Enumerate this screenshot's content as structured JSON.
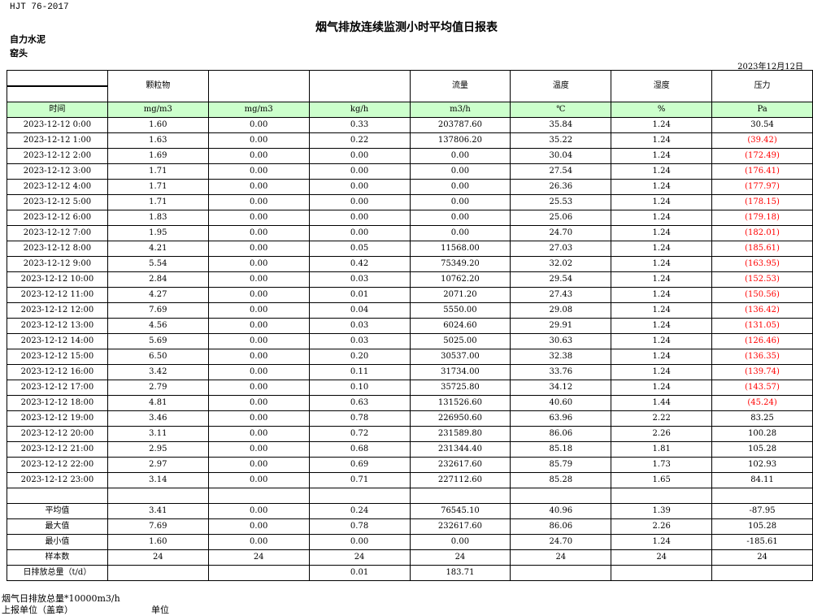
{
  "standard": "HJT  76-2017",
  "title": "烟气排放连续监测小时平均值日报表",
  "company": "自力水泥",
  "unit": "窑头",
  "date": "2023年12月12日",
  "headers": [
    "",
    "颗粒物",
    "",
    "",
    "流量",
    "温度",
    "湿度",
    "压力"
  ],
  "units": [
    "时间",
    "mg/m3",
    "mg/m3",
    "kg/h",
    "m3/h",
    "℃",
    "%",
    "Pa"
  ],
  "rows": [
    [
      "2023-12-12 0:00",
      "1.60",
      "0.00",
      "0.33",
      "203787.60",
      "35.84",
      "1.24",
      "30.54"
    ],
    [
      "2023-12-12 1:00",
      "1.63",
      "0.00",
      "0.22",
      "137806.20",
      "35.22",
      "1.24",
      "(39.42)"
    ],
    [
      "2023-12-12 2:00",
      "1.69",
      "0.00",
      "0.00",
      "0.00",
      "30.04",
      "1.24",
      "(172.49)"
    ],
    [
      "2023-12-12 3:00",
      "1.71",
      "0.00",
      "0.00",
      "0.00",
      "27.54",
      "1.24",
      "(176.41)"
    ],
    [
      "2023-12-12 4:00",
      "1.71",
      "0.00",
      "0.00",
      "0.00",
      "26.36",
      "1.24",
      "(177.97)"
    ],
    [
      "2023-12-12 5:00",
      "1.71",
      "0.00",
      "0.00",
      "0.00",
      "25.53",
      "1.24",
      "(178.15)"
    ],
    [
      "2023-12-12 6:00",
      "1.83",
      "0.00",
      "0.00",
      "0.00",
      "25.06",
      "1.24",
      "(179.18)"
    ],
    [
      "2023-12-12 7:00",
      "1.95",
      "0.00",
      "0.00",
      "0.00",
      "24.70",
      "1.24",
      "(182.01)"
    ],
    [
      "2023-12-12 8:00",
      "4.21",
      "0.00",
      "0.05",
      "11568.00",
      "27.03",
      "1.24",
      "(185.61)"
    ],
    [
      "2023-12-12 9:00",
      "5.54",
      "0.00",
      "0.42",
      "75349.20",
      "32.02",
      "1.24",
      "(163.95)"
    ],
    [
      "2023-12-12 10:00",
      "2.84",
      "0.00",
      "0.03",
      "10762.20",
      "29.54",
      "1.24",
      "(152.53)"
    ],
    [
      "2023-12-12 11:00",
      "4.27",
      "0.00",
      "0.01",
      "2071.20",
      "27.43",
      "1.24",
      "(150.56)"
    ],
    [
      "2023-12-12 12:00",
      "7.69",
      "0.00",
      "0.04",
      "5550.00",
      "29.08",
      "1.24",
      "(136.42)"
    ],
    [
      "2023-12-12 13:00",
      "4.56",
      "0.00",
      "0.03",
      "6024.60",
      "29.91",
      "1.24",
      "(131.05)"
    ],
    [
      "2023-12-12 14:00",
      "5.69",
      "0.00",
      "0.03",
      "5025.00",
      "30.63",
      "1.24",
      "(126.46)"
    ],
    [
      "2023-12-12 15:00",
      "6.50",
      "0.00",
      "0.20",
      "30537.00",
      "32.38",
      "1.24",
      "(136.35)"
    ],
    [
      "2023-12-12 16:00",
      "3.42",
      "0.00",
      "0.11",
      "31734.00",
      "33.76",
      "1.24",
      "(139.74)"
    ],
    [
      "2023-12-12 17:00",
      "2.79",
      "0.00",
      "0.10",
      "35725.80",
      "34.12",
      "1.24",
      "(143.57)"
    ],
    [
      "2023-12-12 18:00",
      "4.81",
      "0.00",
      "0.63",
      "131526.60",
      "40.60",
      "1.44",
      "(45.24)"
    ],
    [
      "2023-12-12 19:00",
      "3.46",
      "0.00",
      "0.78",
      "226950.60",
      "63.96",
      "2.22",
      "83.25"
    ],
    [
      "2023-12-12 20:00",
      "3.11",
      "0.00",
      "0.72",
      "231589.80",
      "86.06",
      "2.26",
      "100.28"
    ],
    [
      "2023-12-12 21:00",
      "2.95",
      "0.00",
      "0.68",
      "231344.40",
      "85.18",
      "1.81",
      "105.28"
    ],
    [
      "2023-12-12 22:00",
      "2.97",
      "0.00",
      "0.69",
      "232617.60",
      "85.79",
      "1.73",
      "102.93"
    ],
    [
      "2023-12-12 23:00",
      "3.14",
      "0.00",
      "0.71",
      "227112.60",
      "85.28",
      "1.65",
      "84.11"
    ]
  ],
  "summary": [
    [
      "平均值",
      "3.41",
      "0.00",
      "0.24",
      "76545.10",
      "40.96",
      "1.39",
      "-87.95"
    ],
    [
      "最大值",
      "7.69",
      "0.00",
      "0.78",
      "232617.60",
      "86.06",
      "2.26",
      "105.28"
    ],
    [
      "最小值",
      "1.60",
      "0.00",
      "0.00",
      "0.00",
      "24.70",
      "1.24",
      "-185.61"
    ],
    [
      "样本数",
      "24",
      "24",
      "24",
      "24",
      "24",
      "24",
      "24"
    ],
    [
      "日排放总量（t/d）",
      "",
      "",
      "0.01",
      "183.71",
      "",
      "",
      ""
    ]
  ],
  "footer": {
    "note": "烟气日排放总量*10000m3/h",
    "reporter": "上报单位（盖章）",
    "unit_label": "单位"
  },
  "colors": {
    "unit_row_bg": "#ccffcc",
    "negative": "#ff0000"
  }
}
